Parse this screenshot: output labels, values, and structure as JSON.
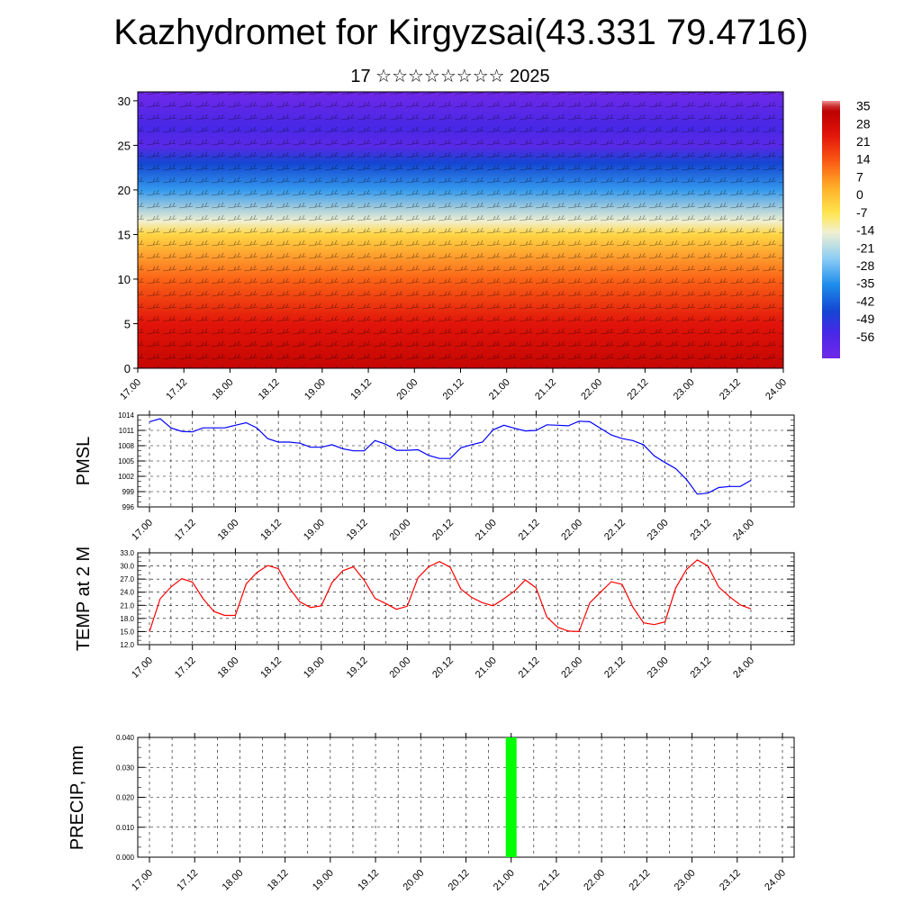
{
  "header": {
    "title": "Kazhydromet for Kirgyzsai(43.331 79.4716)",
    "subtitle": "17 ☆☆☆☆☆☆☆☆ 2025"
  },
  "colors": {
    "pmsl_line": "#0000ff",
    "temp_line": "#ff0000",
    "precip_bar": "#00ff00",
    "grid": "#000000"
  },
  "chart_data": [
    {
      "type": "heatmap",
      "description_source": "top cross-section panel",
      "x_tick_labels": [
        "17.00",
        "17.12",
        "18.00",
        "18.12",
        "19.00",
        "19.12",
        "20.00",
        "20.12",
        "21.00",
        "21.12",
        "22.00",
        "22.12",
        "23.00",
        "23.12",
        "24.00"
      ],
      "y_tick_labels": [
        "0",
        "5",
        "10",
        "15",
        "20",
        "25",
        "30"
      ],
      "ylim": [
        0,
        31
      ],
      "colorbar_labels": [
        "35",
        "28",
        "21",
        "14",
        "7",
        "0",
        "-7",
        "-14",
        "-21",
        "-28",
        "-35",
        "-42",
        "-49",
        "-56"
      ],
      "colorbar_range": [
        -60,
        38
      ],
      "temperature_profile": [
        {
          "level": 0,
          "value": 32
        },
        {
          "level": 5,
          "value": 25
        },
        {
          "level": 10,
          "value": 14
        },
        {
          "level": 15,
          "value": -2
        },
        {
          "level": 16.5,
          "value": -12
        },
        {
          "level": 20,
          "value": -30
        },
        {
          "level": 23,
          "value": -42
        },
        {
          "level": 25,
          "value": -55
        },
        {
          "level": 27,
          "value": -50
        },
        {
          "level": 31,
          "value": -60
        }
      ],
      "overlay": "wind barbs"
    },
    {
      "type": "line",
      "ylabel": "PMSL",
      "x_tick_labels": [
        "17.00",
        "17.12",
        "18.00",
        "18.12",
        "19.00",
        "19.12",
        "20.00",
        "20.12",
        "21.00",
        "21.12",
        "22.00",
        "22.12",
        "23.00",
        "23.12",
        "24.00"
      ],
      "y_tick_labels": [
        "996",
        "999",
        "1002",
        "1005",
        "1008",
        "1011",
        "1014"
      ],
      "ylim": [
        996,
        1014
      ],
      "x_step_hours": 3,
      "series": [
        {
          "values": [
            1012.7,
            1013.3,
            1011.5,
            1010.8,
            1010.7,
            1011.5,
            1011.5,
            1011.5,
            1012.0,
            1012.5,
            1011.5,
            1009.4,
            1008.7,
            1008.7,
            1008.5,
            1007.7,
            1007.7,
            1008.2,
            1007.4,
            1007.0,
            1007.0,
            1009.0,
            1008.3,
            1007.1,
            1007.1,
            1007.2,
            1006.1,
            1005.5,
            1005.5,
            1007.6,
            1008.2,
            1008.7,
            1011.1,
            1012.0,
            1011.4,
            1010.9,
            1011.0,
            1012.1,
            1012.0,
            1011.9,
            1012.8,
            1012.7,
            1011.4,
            1010.1,
            1009.4,
            1009.0,
            1008.2,
            1006.0,
            1004.7,
            1003.5,
            1001.4,
            998.5,
            998.7,
            999.8,
            1000.0,
            1000.0,
            1001.2
          ]
        }
      ]
    },
    {
      "type": "line",
      "ylabel": "TEMP at 2 M",
      "x_tick_labels": [
        "17.00",
        "17.12",
        "18.00",
        "18.12",
        "19.00",
        "19.12",
        "20.00",
        "20.12",
        "21.00",
        "21.12",
        "22.00",
        "22.12",
        "23.00",
        "23.12",
        "24.00"
      ],
      "y_tick_labels": [
        "12.0",
        "15.0",
        "18.0",
        "21.0",
        "24.0",
        "27.0",
        "30.0",
        "33.0"
      ],
      "ylim": [
        12,
        33
      ],
      "x_step_hours": 3,
      "series": [
        {
          "values": [
            15.0,
            22.5,
            25.2,
            27.1,
            26.3,
            22.5,
            19.6,
            18.7,
            18.7,
            25.9,
            28.5,
            30.1,
            29.4,
            25.0,
            21.8,
            20.5,
            20.9,
            26.2,
            28.9,
            29.8,
            26.7,
            22.6,
            21.4,
            20.1,
            20.8,
            27.3,
            29.8,
            31.0,
            29.7,
            24.7,
            22.8,
            21.6,
            20.9,
            22.5,
            24.3,
            26.8,
            25.0,
            18.3,
            16.0,
            15.1,
            15.0,
            21.6,
            24.0,
            26.4,
            25.8,
            20.6,
            17.0,
            16.6,
            17.2,
            25.0,
            29.2,
            31.4,
            30.0,
            25.2,
            23.0,
            21.1,
            20.2
          ]
        }
      ]
    },
    {
      "type": "bar",
      "ylabel": "PRECIP, mm",
      "x_tick_labels": [
        "17.00",
        "17.12",
        "18.00",
        "18.12",
        "19.00",
        "19.12",
        "20.00",
        "20.12",
        "21.00",
        "21.12",
        "22.00",
        "22.12",
        "23.00",
        "23.12",
        "24.00"
      ],
      "y_tick_labels": [
        "0.000",
        "0.010",
        "0.020",
        "0.030",
        "0.040"
      ],
      "ylim": [
        0,
        0.04
      ],
      "bars": [
        {
          "x_hours": 96,
          "value": 0.04
        }
      ]
    }
  ]
}
